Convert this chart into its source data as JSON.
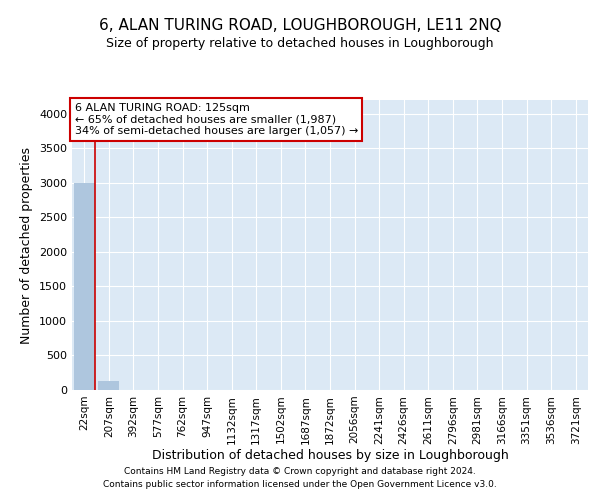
{
  "title": "6, ALAN TURING ROAD, LOUGHBOROUGH, LE11 2NQ",
  "subtitle": "Size of property relative to detached houses in Loughborough",
  "xlabel": "Distribution of detached houses by size in Loughborough",
  "ylabel": "Number of detached properties",
  "footnote1": "Contains HM Land Registry data © Crown copyright and database right 2024.",
  "footnote2": "Contains public sector information licensed under the Open Government Licence v3.0.",
  "categories": [
    "22sqm",
    "207sqm",
    "392sqm",
    "577sqm",
    "762sqm",
    "947sqm",
    "1132sqm",
    "1317sqm",
    "1502sqm",
    "1687sqm",
    "1872sqm",
    "2056sqm",
    "2241sqm",
    "2426sqm",
    "2611sqm",
    "2796sqm",
    "2981sqm",
    "3166sqm",
    "3351sqm",
    "3536sqm",
    "3721sqm"
  ],
  "values": [
    3000,
    130,
    2,
    1,
    1,
    0,
    0,
    0,
    0,
    0,
    0,
    0,
    0,
    0,
    0,
    0,
    0,
    0,
    0,
    0,
    0
  ],
  "bar_color": "#aec6de",
  "highlight_line_color": "#cc0000",
  "annotation_text": "6 ALAN TURING ROAD: 125sqm\n← 65% of detached houses are smaller (1,987)\n34% of semi-detached houses are larger (1,057) →",
  "annotation_box_color": "#ffffff",
  "annotation_border_color": "#cc0000",
  "ylim": [
    0,
    4200
  ],
  "yticks": [
    0,
    500,
    1000,
    1500,
    2000,
    2500,
    3000,
    3500,
    4000
  ],
  "plot_background": "#dce9f5",
  "grid_color": "#ffffff",
  "title_fontsize": 11,
  "subtitle_fontsize": 9,
  "axis_label_fontsize": 9,
  "tick_fontsize": 8,
  "figsize": [
    6.0,
    5.0
  ],
  "dpi": 100
}
